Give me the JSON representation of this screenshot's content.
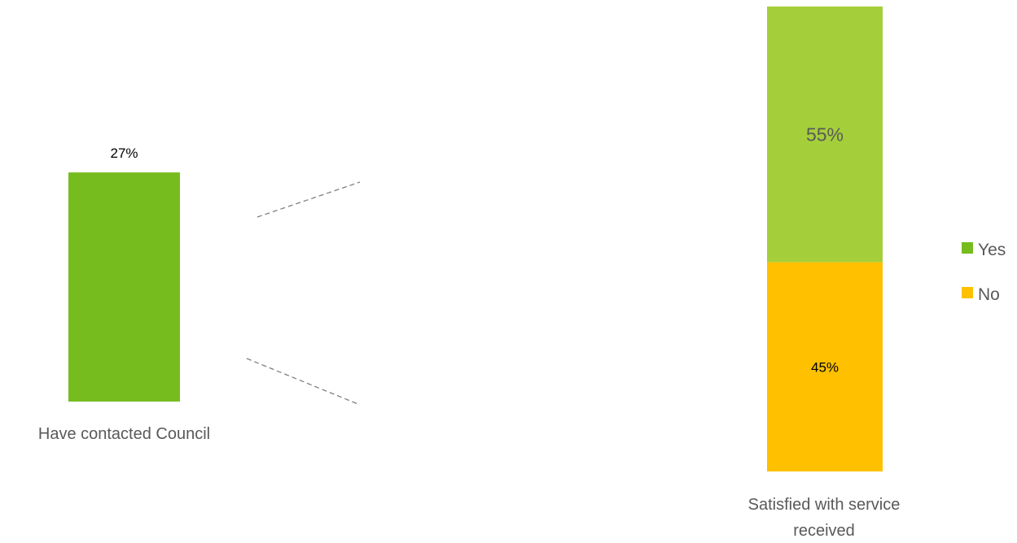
{
  "chart_data": [
    {
      "type": "bar",
      "categories": [
        "Have contacted Council"
      ],
      "values": [
        27
      ],
      "data_labels": [
        "27%"
      ],
      "ylim": [
        0,
        100
      ],
      "colors": [
        "#77bc1f"
      ]
    },
    {
      "type": "bar",
      "stacked": true,
      "stacked_percent": true,
      "categories": [
        "Satisfied with service received"
      ],
      "category_label_lines": [
        "Satisfied with service",
        "received"
      ],
      "series": [
        {
          "name": "Yes",
          "values": [
            55
          ],
          "data_label": "55%",
          "color": "#a5cf3a"
        },
        {
          "name": "No",
          "values": [
            45
          ],
          "data_label": "45%",
          "color": "#ffc000"
        }
      ],
      "ylim": [
        0,
        100
      ],
      "legend_position": "right",
      "legend": {
        "items": [
          {
            "name": "Yes",
            "color": "#77bc1f"
          },
          {
            "name": "No",
            "color": "#ffc000"
          }
        ]
      }
    }
  ],
  "connector_color": "#7f7f7f"
}
